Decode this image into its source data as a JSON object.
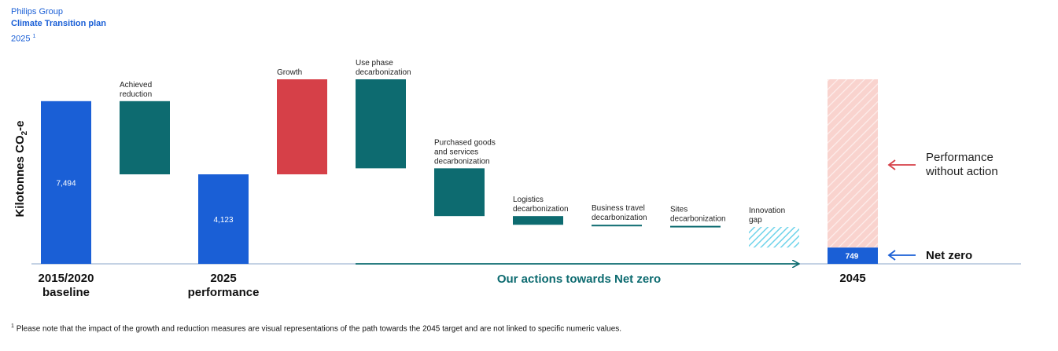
{
  "header": {
    "company": "Philips Group",
    "plan_title": "Climate Transition plan",
    "year": "2025",
    "footnote_ref": "1"
  },
  "footnote": {
    "ref": "1",
    "text": "Please note that the impact of the growth and reduction measures are visual representations of the path towards the 2045 target and are not linked to specific numeric values."
  },
  "chart_data": {
    "type": "bar",
    "subtype": "waterfall",
    "ylabel_main": "Kilotonnes CO",
    "ylabel_sub": "2",
    "ylabel_tail": "-e",
    "ylim": [
      0,
      8500
    ],
    "bars": [
      {
        "key": "baseline",
        "kind": "total",
        "base": 0,
        "top": 7494,
        "value_label": "7,494",
        "label_lines": [],
        "color": "#1a5fd6"
      },
      {
        "key": "achieved",
        "kind": "decrease",
        "base": 4123,
        "top": 7494,
        "value_label": "",
        "label_lines": [
          "Achieved",
          "reduction"
        ],
        "color": "#0d6b70"
      },
      {
        "key": "perf2025",
        "kind": "total",
        "base": 0,
        "top": 4123,
        "value_label": "4,123",
        "label_lines": [],
        "color": "#1a5fd6"
      },
      {
        "key": "growth",
        "kind": "increase",
        "base": 4123,
        "top": 8500,
        "value_label": "",
        "label_lines": [
          "Growth"
        ],
        "color": "#d64048"
      },
      {
        "key": "usephase",
        "kind": "decrease",
        "base": 4400,
        "top": 8500,
        "value_label": "",
        "label_lines": [
          "Use phase",
          "decarbonization"
        ],
        "color": "#0d6b70"
      },
      {
        "key": "purchased",
        "kind": "decrease",
        "base": 2200,
        "top": 4400,
        "value_label": "",
        "label_lines": [
          "Purchased goods",
          "and services",
          "decarbonization"
        ],
        "color": "#0d6b70"
      },
      {
        "key": "logistics",
        "kind": "decrease",
        "base": 1800,
        "top": 2200,
        "value_label": "",
        "label_lines": [
          "Logistics",
          "decarbonization"
        ],
        "color": "#0d6b70"
      },
      {
        "key": "travel",
        "kind": "decrease",
        "base": 1750,
        "top": 1800,
        "value_label": "",
        "label_lines": [
          "Business travel",
          "decarbonization"
        ],
        "color": "#0d6b70"
      },
      {
        "key": "sites",
        "kind": "decrease",
        "base": 1700,
        "top": 1750,
        "value_label": "",
        "label_lines": [
          "Sites",
          "decarbonization"
        ],
        "color": "#0d6b70"
      },
      {
        "key": "innovation",
        "kind": "gap",
        "base": 749,
        "top": 1700,
        "value_label": "",
        "label_lines": [
          "Innovation",
          "gap"
        ],
        "color": "#6fd3ea"
      },
      {
        "key": "netzero2045",
        "kind": "total",
        "base": 0,
        "top": 749,
        "value_label": "749",
        "label_lines": [],
        "color": "#1a5fd6"
      }
    ],
    "without_action": {
      "base": 749,
      "top": 8500,
      "color": "#f6c9c4"
    },
    "categories": [
      {
        "lines": [
          "2015/2020",
          "baseline"
        ],
        "at": "baseline"
      },
      {
        "lines": [
          "2025",
          "performance"
        ],
        "at": "perf2025"
      },
      {
        "lines": [
          "2045"
        ],
        "at": "netzero2045"
      }
    ],
    "actions_label": "Our actions towards Net zero",
    "annotations": {
      "performance": [
        "Performance",
        "without action"
      ],
      "net_zero": "Net zero",
      "net_zero_value": 749
    },
    "colors": {
      "baseline_blue": "#1a5fd6",
      "reduction_teal": "#0d6b70",
      "growth_red": "#d64048",
      "gap_cyan": "#6fd3ea",
      "pale_red": "#f6c9c4",
      "arrow_red": "#d64048",
      "arrow_blue": "#1a5fd6"
    }
  }
}
